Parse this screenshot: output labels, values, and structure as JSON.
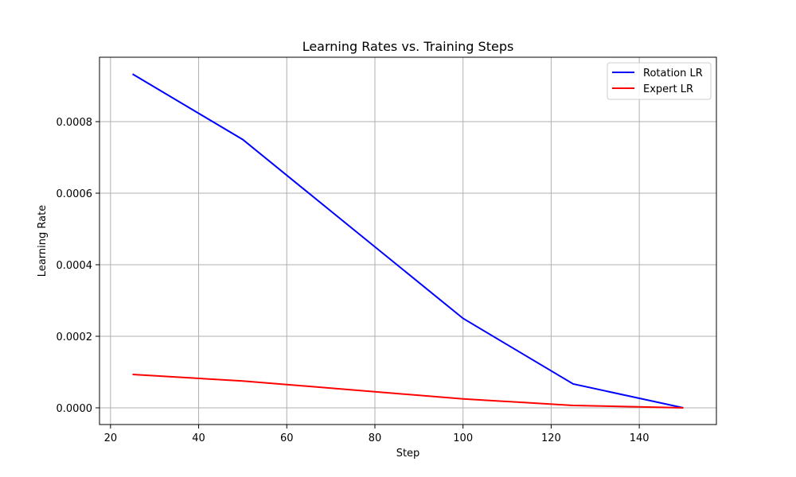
{
  "chart_data": {
    "type": "line",
    "title": "Learning Rates vs. Training Steps",
    "xlabel": "Step",
    "ylabel": "Learning Rate",
    "xlim": [
      17.5,
      157.5
    ],
    "ylim": [
      -4.67e-05,
      0.00098
    ],
    "x_ticks": [
      20,
      40,
      60,
      80,
      100,
      120,
      140
    ],
    "y_ticks": [
      0.0,
      0.0002,
      0.0004,
      0.0006,
      0.0008
    ],
    "y_tick_labels": [
      "0.0000",
      "0.0002",
      "0.0004",
      "0.0006",
      "0.0008"
    ],
    "grid": true,
    "legend_position": "top-right",
    "x": [
      25,
      50,
      75,
      100,
      125,
      150
    ],
    "series": [
      {
        "name": "Rotation LR",
        "color": "#0000ff",
        "values": [
          0.000933,
          0.00075,
          0.0005,
          0.00025,
          6.67e-05,
          0.0
        ]
      },
      {
        "name": "Expert LR",
        "color": "#ff0000",
        "values": [
          9.33e-05,
          7.5e-05,
          5e-05,
          2.5e-05,
          6.67e-06,
          0.0
        ]
      }
    ]
  }
}
